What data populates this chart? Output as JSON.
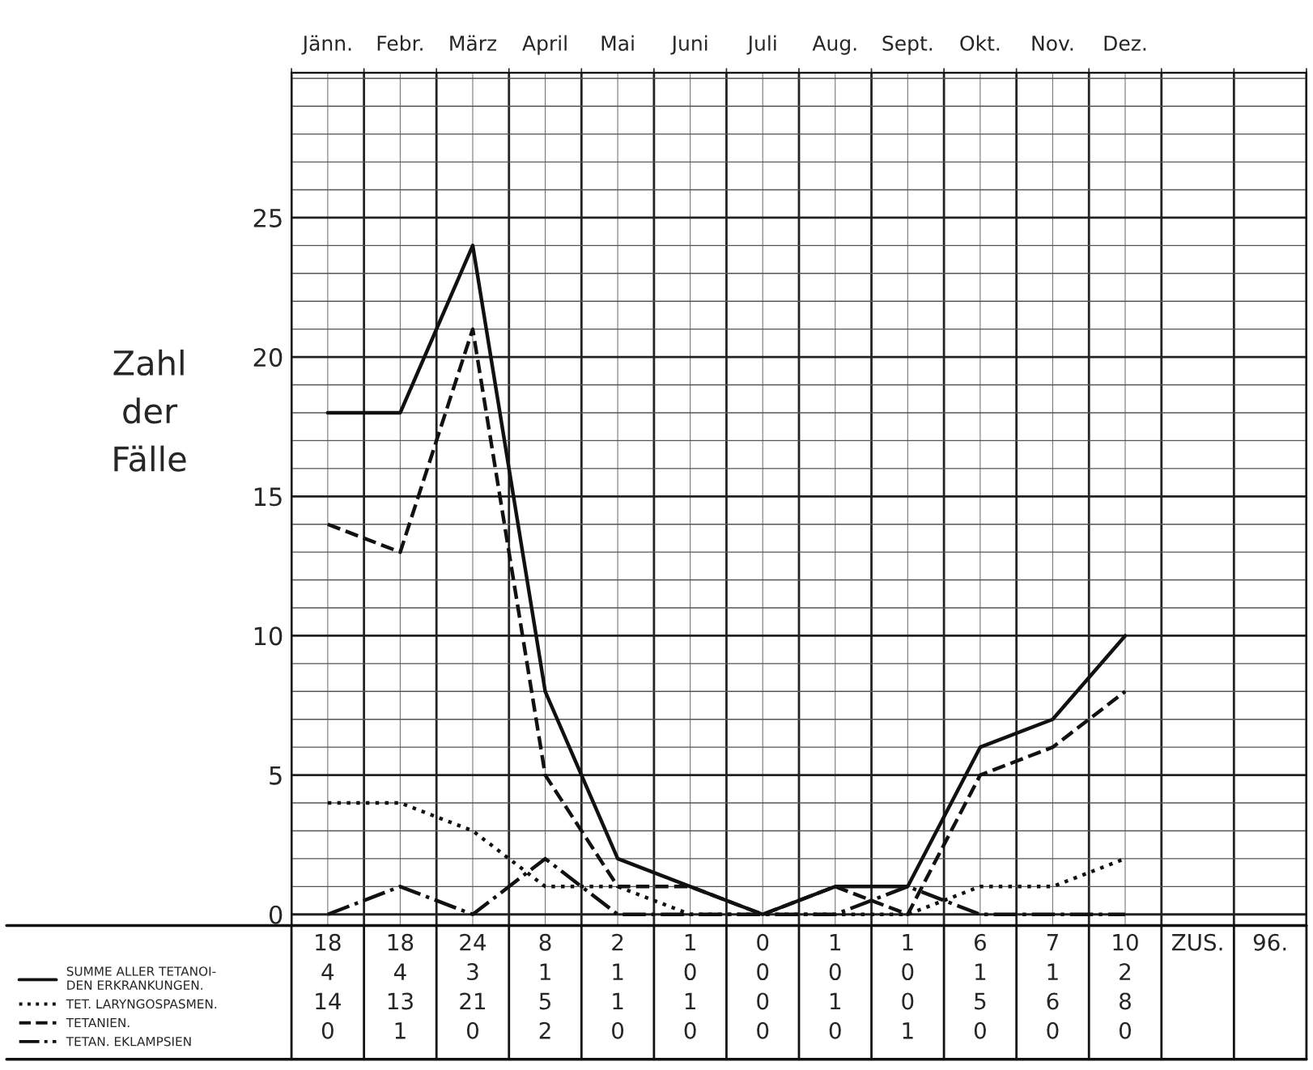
{
  "chart_data": {
    "type": "line",
    "categories": [
      "Jänn.",
      "Febr.",
      "März",
      "April",
      "Mai",
      "Juni",
      "Juli",
      "Aug.",
      "Sept.",
      "Okt.",
      "Nov.",
      "Dez."
    ],
    "ylabel": "Zahl\nder\nFälle",
    "ylim": [
      -0.4,
      30.2
    ],
    "yticks": [
      0,
      5,
      10,
      15,
      20,
      25
    ],
    "grid": true,
    "legend": "bottom left",
    "data_labels": true,
    "marker": "none",
    "series": [
      {
        "name": "SUMME ALLER TETANOI-\nDEN ERKRANKUNGEN.",
        "color": "#111111",
        "line_style": "solid",
        "values": [
          18,
          18,
          24,
          8,
          2,
          1,
          0,
          1,
          1,
          6,
          7,
          10
        ]
      },
      {
        "name": "TET. LARYNGOSPASMEN.",
        "color": "#111111",
        "line_style": "dotted",
        "values": [
          4,
          4,
          3,
          1,
          1,
          0,
          0,
          0,
          0,
          1,
          1,
          2
        ]
      },
      {
        "name": "TETANIEN.",
        "color": "#111111",
        "line_style": "dashed",
        "values": [
          14,
          13,
          21,
          5,
          1,
          1,
          0,
          1,
          0,
          5,
          6,
          8
        ]
      },
      {
        "name": "TETAN. EKLAMPSIEN",
        "color": "#111111",
        "line_style": "dashdot",
        "values": [
          0,
          1,
          0,
          2,
          0,
          0,
          0,
          0,
          1,
          0,
          0,
          0
        ]
      }
    ],
    "annotations": [
      "ZUS.",
      "96."
    ]
  }
}
